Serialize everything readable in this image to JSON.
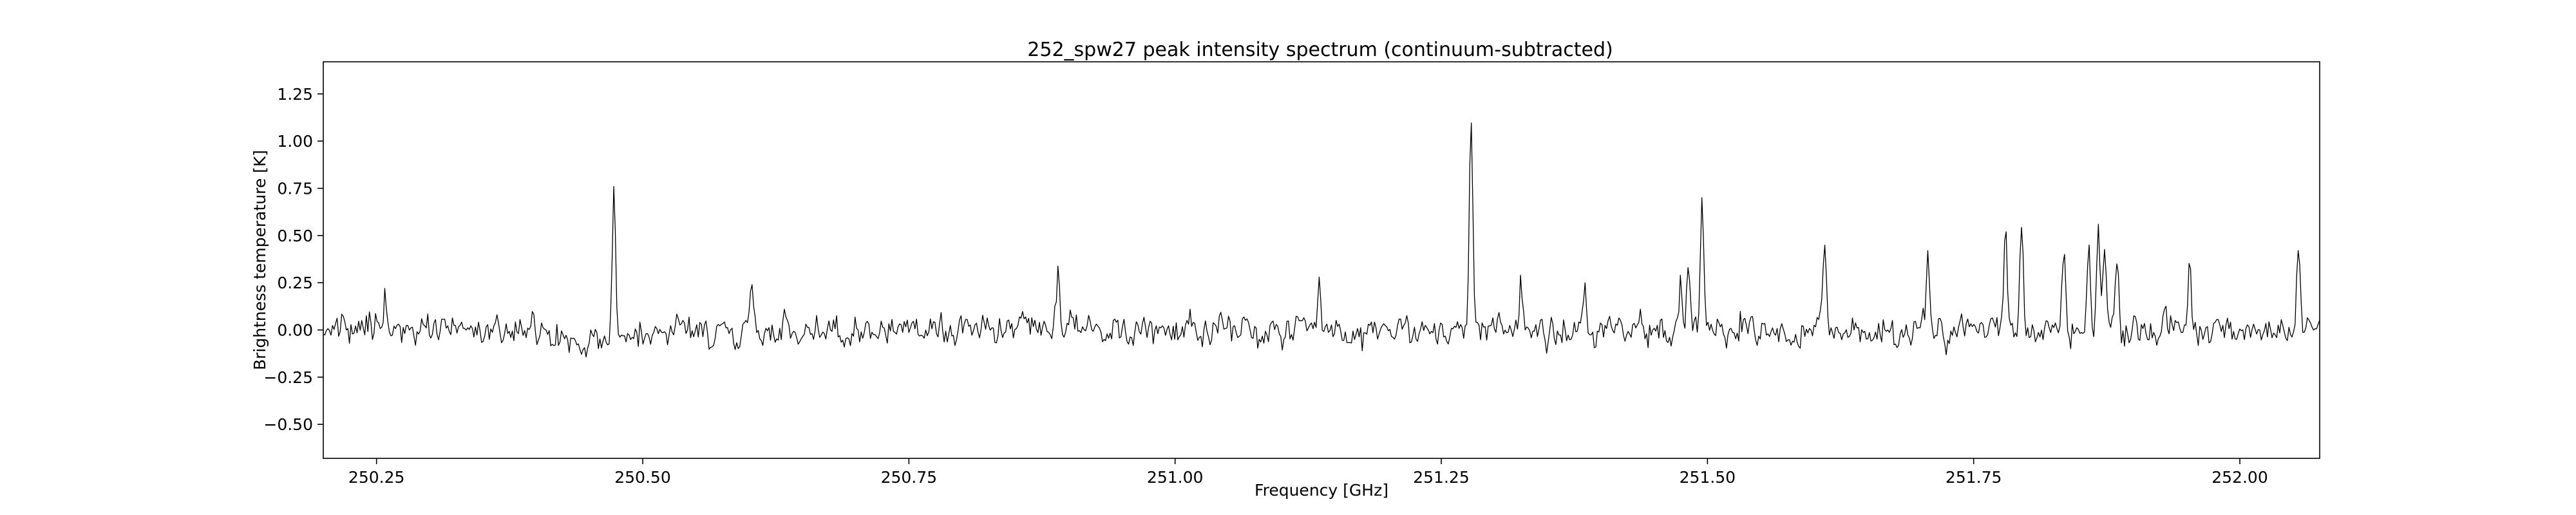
{
  "chart_data": {
    "type": "line",
    "title": "252_spw27 peak intensity spectrum (continuum-subtracted)",
    "xlabel": "Frequency [GHz]",
    "ylabel": "Brightness temperature [K]",
    "xlim": [
      250.2,
      252.075
    ],
    "ylim": [
      -0.68,
      1.42
    ],
    "x_ticks": [
      "250.25",
      "250.50",
      "250.75",
      "251.00",
      "251.25",
      "251.50",
      "251.75",
      "252.00"
    ],
    "y_ticks": [
      "1.25",
      "1.00",
      "0.75",
      "0.50",
      "0.25",
      "0.00",
      "−0.25",
      "−0.50"
    ],
    "grid": false,
    "line_color": "#000000",
    "channel_count": 1300,
    "noise_rms": 0.05,
    "baseline_features": [
      {
        "center": 250.44,
        "width": 0.025,
        "value": -0.09
      },
      {
        "center": 250.88,
        "width": 0.04,
        "value": 0.03
      }
    ],
    "peaks": [
      {
        "center": 250.258,
        "value": 0.22
      },
      {
        "center": 250.473,
        "value": 0.76
      },
      {
        "center": 250.602,
        "value": 0.24
      },
      {
        "center": 250.89,
        "value": 0.3
      },
      {
        "center": 251.135,
        "value": 0.28
      },
      {
        "center": 251.278,
        "value": 1.06
      },
      {
        "center": 251.325,
        "value": 0.29
      },
      {
        "center": 251.385,
        "value": 0.25
      },
      {
        "center": 251.475,
        "value": 0.29
      },
      {
        "center": 251.482,
        "value": 0.33
      },
      {
        "center": 251.495,
        "value": 0.7
      },
      {
        "center": 251.61,
        "value": 0.39
      },
      {
        "center": 251.707,
        "value": 0.42
      },
      {
        "center": 251.78,
        "value": 0.52
      },
      {
        "center": 251.795,
        "value": 0.49
      },
      {
        "center": 251.835,
        "value": 0.4
      },
      {
        "center": 251.858,
        "value": 0.45
      },
      {
        "center": 251.867,
        "value": 0.56
      },
      {
        "center": 251.873,
        "value": 0.36
      },
      {
        "center": 251.885,
        "value": 0.35
      },
      {
        "center": 251.953,
        "value": 0.33
      },
      {
        "center": 252.055,
        "value": 0.39
      }
    ]
  }
}
